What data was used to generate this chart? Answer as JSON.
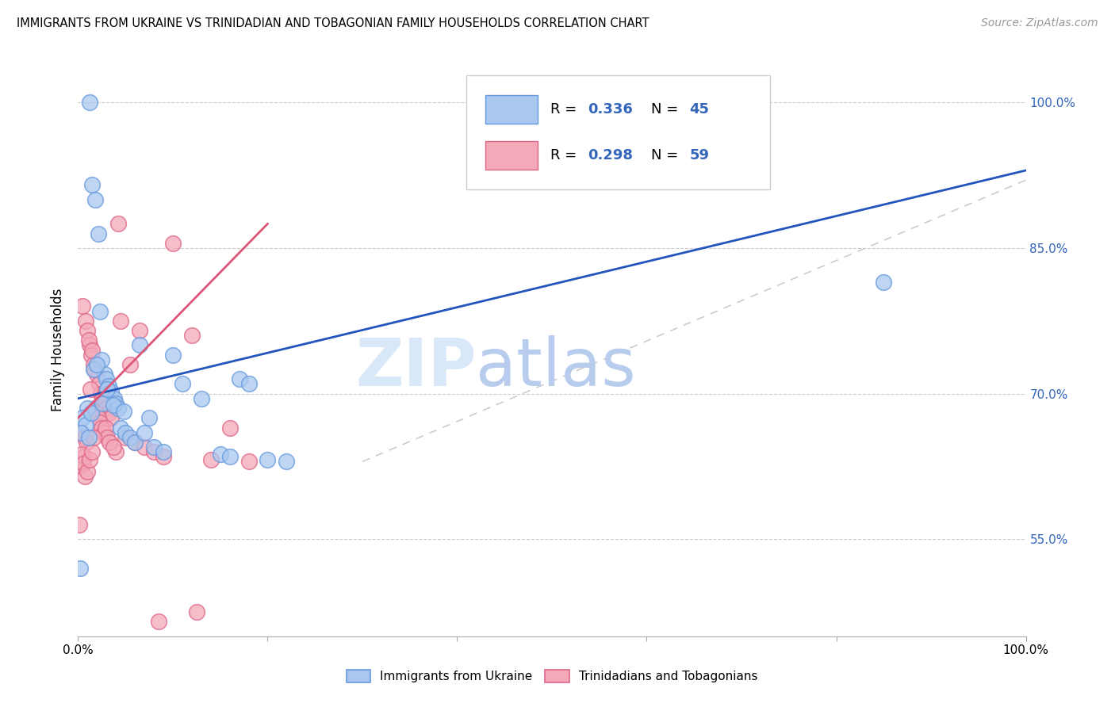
{
  "title": "IMMIGRANTS FROM UKRAINE VS TRINIDADIAN AND TOBAGONIAN FAMILY HOUSEHOLDS CORRELATION CHART",
  "source": "Source: ZipAtlas.com",
  "ylabel": "Family Households",
  "legend_blue_label": "Immigrants from Ukraine",
  "legend_pink_label": "Trinidadians and Tobagonians",
  "xlim": [
    0,
    100
  ],
  "ylim": [
    45,
    104
  ],
  "yticks": [
    55.0,
    70.0,
    85.0,
    100.0
  ],
  "blue_color": "#a8c8f0",
  "pink_color": "#f4a8b8",
  "blue_edge": "#6699dd",
  "pink_edge": "#dd6688",
  "blue_line_color": "#2255bb",
  "pink_line_color": "#dd5577",
  "gray_ref_color": "#cccccc",
  "watermark_zip_color": "#d8e8f8",
  "watermark_atlas_color": "#b8ccee",
  "ukraine_x": [
    1.2,
    1.5,
    1.8,
    2.1,
    2.3,
    2.5,
    2.8,
    3.0,
    3.2,
    3.5,
    3.8,
    4.0,
    4.2,
    4.5,
    5.0,
    5.5,
    6.0,
    7.0,
    8.0,
    9.0,
    10.0,
    11.0,
    13.0,
    15.0,
    16.0,
    17.0,
    18.0,
    20.0,
    22.0,
    1.0,
    0.5,
    0.8,
    0.3,
    1.1,
    1.4,
    1.6,
    2.0,
    2.6,
    3.1,
    3.7,
    4.8,
    6.5,
    7.5,
    85.0,
    0.2
  ],
  "ukraine_y": [
    100.0,
    91.5,
    90.0,
    86.5,
    78.5,
    73.5,
    72.0,
    71.5,
    70.8,
    70.2,
    69.5,
    69.0,
    68.5,
    66.5,
    66.0,
    65.5,
    65.0,
    66.0,
    64.5,
    64.0,
    74.0,
    71.0,
    69.5,
    63.8,
    63.5,
    71.5,
    71.0,
    63.2,
    63.0,
    68.5,
    67.5,
    66.8,
    66.0,
    65.5,
    68.0,
    72.5,
    73.0,
    69.0,
    70.5,
    68.8,
    68.2,
    75.0,
    67.5,
    81.5,
    52.0
  ],
  "trini_x": [
    0.2,
    0.4,
    0.5,
    0.6,
    0.8,
    1.0,
    1.2,
    1.4,
    1.6,
    1.8,
    2.0,
    2.2,
    2.4,
    2.6,
    2.8,
    3.0,
    3.2,
    3.5,
    4.0,
    4.5,
    5.0,
    6.0,
    7.0,
    8.0,
    9.0,
    10.0,
    12.0,
    14.0,
    16.0,
    0.3,
    0.7,
    0.9,
    1.1,
    1.3,
    1.5,
    1.7,
    1.9,
    2.1,
    2.3,
    2.5,
    2.7,
    2.9,
    3.1,
    3.3,
    3.7,
    4.2,
    5.5,
    6.5,
    8.5,
    18.0,
    0.15,
    0.35,
    0.55,
    0.75,
    0.95,
    1.25,
    1.45,
    1.65,
    12.5
  ],
  "trini_y": [
    62.5,
    63.0,
    79.0,
    63.5,
    77.5,
    76.5,
    75.0,
    74.0,
    73.0,
    68.5,
    72.0,
    71.0,
    70.0,
    69.5,
    69.0,
    68.5,
    68.0,
    67.5,
    64.0,
    77.5,
    65.5,
    65.0,
    64.5,
    64.0,
    63.5,
    85.5,
    76.0,
    63.2,
    66.5,
    66.0,
    65.5,
    65.0,
    75.5,
    70.5,
    74.5,
    72.5,
    68.0,
    67.5,
    67.0,
    66.5,
    66.0,
    66.5,
    65.5,
    65.0,
    64.5,
    87.5,
    73.0,
    76.5,
    46.5,
    63.0,
    56.5,
    63.8,
    62.8,
    61.5,
    62.0,
    63.2,
    64.0,
    65.5,
    47.5
  ],
  "blue_line_x0": 0,
  "blue_line_x1": 100,
  "blue_line_y0": 69.5,
  "blue_line_y1": 93.0,
  "pink_line_x0": 0,
  "pink_line_x1": 20,
  "pink_line_y0": 67.5,
  "pink_line_y1": 87.5,
  "gray_ref_x0": 30,
  "gray_ref_x1": 100,
  "gray_ref_y0": 63.0,
  "gray_ref_y1": 92.0
}
